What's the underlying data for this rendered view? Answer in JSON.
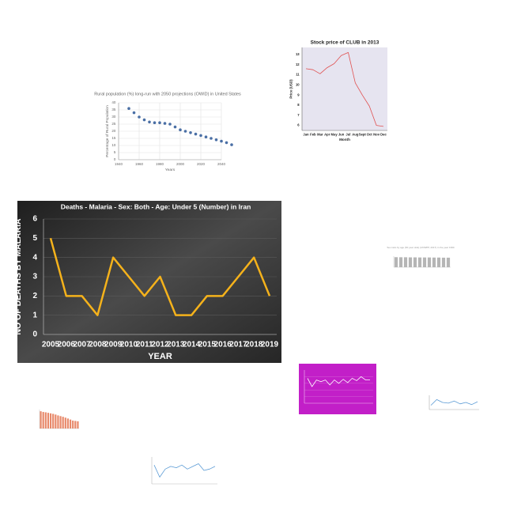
{
  "chart_data": [
    {
      "type": "scatter",
      "title": "Rural population (%) long-run with 2050 projections (OWID) in United States",
      "xlabel": "Years",
      "ylabel": "Percentage of Rural Population",
      "x": [
        1950,
        1955,
        1960,
        1965,
        1970,
        1975,
        1980,
        1985,
        1990,
        1995,
        2000,
        2005,
        2010,
        2015,
        2020,
        2025,
        2030,
        2035,
        2040,
        2045,
        2050
      ],
      "values": [
        36,
        33,
        30,
        28,
        26.5,
        26,
        26,
        25.5,
        25,
        23,
        21,
        20,
        19,
        18,
        17,
        16,
        15,
        14,
        13,
        12,
        10.5
      ],
      "color": "#4a6fa5",
      "xlim": [
        1940,
        2040
      ],
      "xticks": [
        1940,
        1960,
        1980,
        2000,
        2020,
        2040
      ],
      "ylim": [
        0,
        40
      ],
      "yticks": [
        0,
        5,
        10,
        15,
        20,
        25,
        30,
        35,
        40
      ],
      "grid": true
    },
    {
      "type": "line",
      "title": "Stock price of CLUB in 2013",
      "xlabel": "Month",
      "ylabel": "Price (USD)",
      "categories": [
        "Jan",
        "Feb",
        "Mar",
        "Apr",
        "May",
        "Jun",
        "Jul",
        "Aug",
        "Sept",
        "Oct",
        "Nov",
        "Dec"
      ],
      "values": [
        11.6,
        11.5,
        11.1,
        11.7,
        12.1,
        12.9,
        13.2,
        10.2,
        9.0,
        7.9,
        6.0,
        5.9
      ],
      "color": "#e05050",
      "plot_background": "#e6e4f0",
      "ylim": [
        5.5,
        13.7
      ],
      "yticks": [
        6,
        7,
        8,
        9,
        10,
        11,
        12,
        13
      ],
      "grid": false
    },
    {
      "type": "line",
      "title": "Deaths - Malaria - Sex: Both - Age: Under 5 (Number) in Iran",
      "xlabel": "YEAR",
      "ylabel": "NO OF DEATHS BY MALARIA",
      "categories": [
        "2005",
        "2006",
        "2007",
        "2008",
        "2009",
        "2010",
        "2011",
        "2012",
        "2013",
        "2014",
        "2015",
        "2016",
        "2017",
        "2018",
        "2019"
      ],
      "values": [
        5,
        2,
        2,
        1,
        4,
        3,
        2,
        3,
        1,
        1,
        2,
        2,
        3,
        4,
        2
      ],
      "color": "#f5b21b",
      "background": "#3a3a3a",
      "ylim": [
        0,
        6
      ],
      "yticks": [
        0,
        1,
        2,
        3,
        4,
        5,
        6
      ],
      "grid": true
    },
    {
      "type": "bar",
      "title": "Sex ratio by age (60 year olds) (UNWPP, 2017) in the year 1990",
      "categories": [
        null,
        null,
        null,
        null,
        null,
        null,
        null,
        null,
        null,
        null,
        null,
        null
      ],
      "values": [
        100,
        99,
        99,
        98,
        98,
        97,
        97,
        97,
        96,
        96,
        95,
        95
      ],
      "color": "#b5b5b5",
      "ylim": [
        0,
        110
      ]
    },
    {
      "type": "line",
      "categories": [
        null,
        null,
        null,
        null,
        null,
        null,
        null,
        null,
        null,
        null,
        null,
        null,
        null,
        null,
        null
      ],
      "values": [
        0.75,
        0.5,
        0.7,
        0.65,
        0.7,
        0.55,
        0.7,
        0.6,
        0.72,
        0.62,
        0.75,
        0.68,
        0.8,
        0.7,
        0.7
      ],
      "color": "#ffffff",
      "background": "#c21fc8",
      "ylim": [
        0,
        1
      ],
      "grid": true
    },
    {
      "type": "line",
      "categories": [
        null,
        null,
        null,
        null,
        null,
        null,
        null,
        null,
        null
      ],
      "values": [
        0.3,
        0.7,
        0.5,
        0.45,
        0.6,
        0.4,
        0.5,
        0.35,
        0.55
      ],
      "color": "#5b9bd5",
      "ylim": [
        0,
        1
      ]
    },
    {
      "type": "bar",
      "categories": [
        null,
        null,
        null,
        null,
        null,
        null,
        null,
        null,
        null,
        null,
        null,
        null,
        null,
        null,
        null,
        null
      ],
      "values": [
        10,
        9.6,
        9.4,
        9.1,
        8.8,
        8.5,
        8.1,
        7.6,
        7.2,
        6.8,
        6.3,
        5.8,
        5.2,
        4.6,
        4.4,
        4.2
      ],
      "color": "#e8896a",
      "ylim": [
        0,
        11
      ]
    },
    {
      "type": "line",
      "categories": [
        null,
        null,
        null,
        null,
        null,
        null,
        null,
        null,
        null,
        null,
        null,
        null
      ],
      "values": [
        0.7,
        0.25,
        0.55,
        0.65,
        0.6,
        0.7,
        0.55,
        0.65,
        0.75,
        0.5,
        0.55,
        0.65
      ],
      "color": "#5b9bd5",
      "ylim": [
        0,
        1
      ]
    }
  ]
}
